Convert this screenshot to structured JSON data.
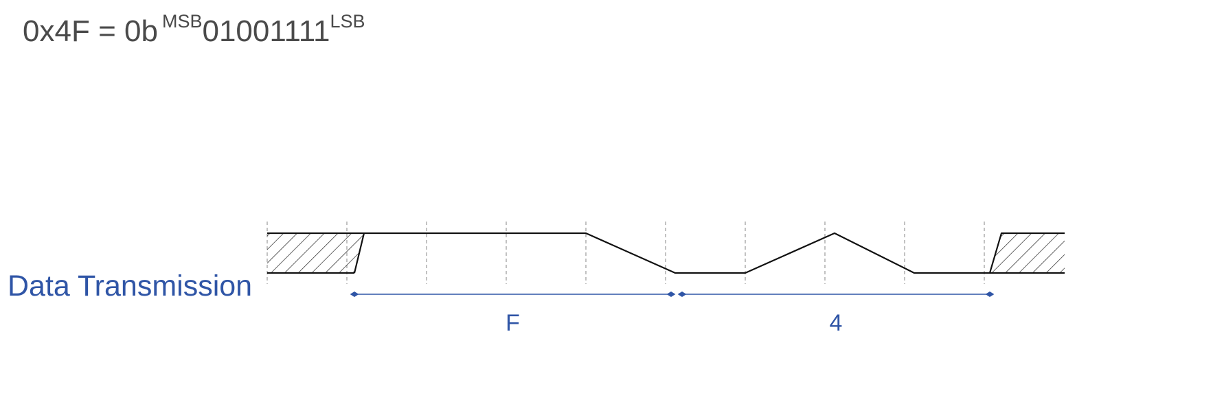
{
  "header": {
    "hex_value": "0x4F",
    "equals": "=",
    "binary_prefix": "0b",
    "msb_label": "MSB",
    "bits": "01001111",
    "lsb_label": "LSB"
  },
  "signal": {
    "label": "Data Transmission",
    "bit_sequence": [
      1,
      1,
      1,
      1,
      0,
      0,
      1,
      0
    ],
    "order": "LSB first"
  },
  "spans": [
    {
      "label": "F",
      "bits": "1111"
    },
    {
      "label": "4",
      "bits": "0010"
    }
  ],
  "colors": {
    "text": "#4a4a4a",
    "accent": "#2f55a6",
    "waveform": "#111111",
    "gridline": "#9a9a9a"
  }
}
